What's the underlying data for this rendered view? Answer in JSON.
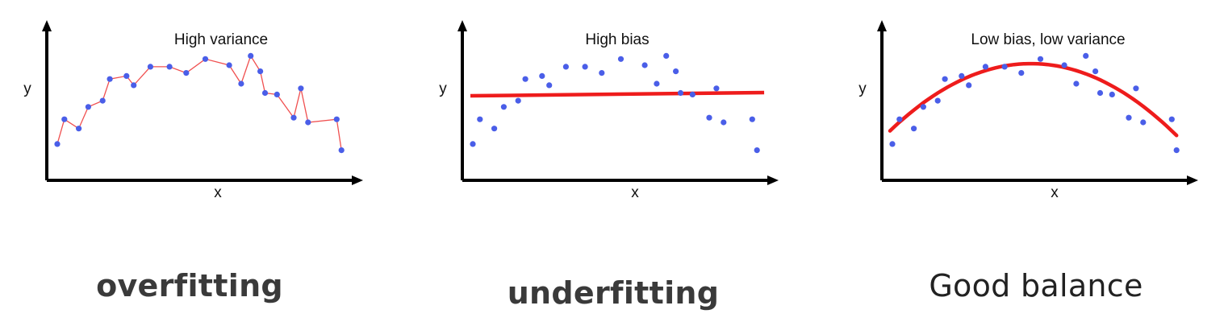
{
  "panels": [
    {
      "title": "High variance",
      "xlabel": "x",
      "ylabel": "y",
      "caption": "overfitting",
      "fit": "interpolating-line",
      "fit_color": "#f05050"
    },
    {
      "title": "High bias",
      "xlabel": "x",
      "ylabel": "y",
      "caption": "underfitting",
      "fit": "horizontal-line",
      "fit_color": "#ee1c1c"
    },
    {
      "title": "Low bias, low variance",
      "xlabel": "x",
      "ylabel": "y",
      "caption": "Good balance",
      "fit": "parabola",
      "fit_color": "#ee1c1c"
    }
  ],
  "point_color": "#4a5ee8",
  "axis_color": "#000000",
  "chart_data": {
    "type": "scatter",
    "series": [
      {
        "values": [
          [
            0.1,
            1.1
          ],
          [
            0.4,
            2.7
          ],
          [
            1.0,
            2.1
          ],
          [
            1.4,
            3.5
          ],
          [
            2.0,
            3.9
          ],
          [
            2.3,
            5.3
          ],
          [
            3.0,
            5.5
          ],
          [
            3.3,
            4.9
          ],
          [
            4.0,
            6.1
          ],
          [
            4.8,
            6.1
          ],
          [
            5.5,
            5.7
          ],
          [
            6.3,
            6.6
          ],
          [
            7.3,
            6.2
          ],
          [
            7.8,
            5.0
          ],
          [
            8.2,
            6.8
          ],
          [
            8.6,
            5.8
          ],
          [
            8.8,
            4.4
          ],
          [
            9.3,
            4.3
          ],
          [
            10.0,
            2.8
          ],
          [
            10.3,
            4.7
          ],
          [
            10.6,
            2.5
          ],
          [
            11.8,
            2.7
          ],
          [
            12.0,
            0.7
          ]
        ]
      }
    ]
  }
}
